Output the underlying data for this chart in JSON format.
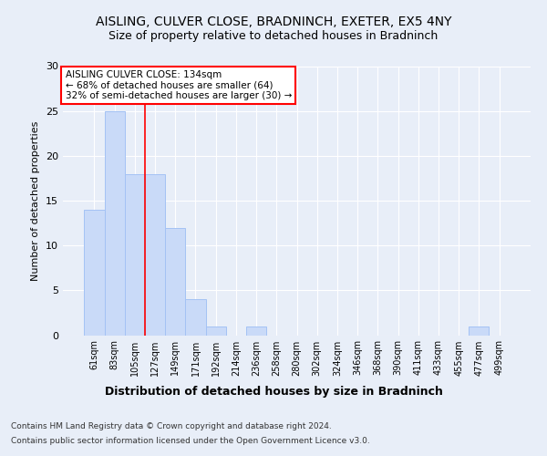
{
  "title": "AISLING, CULVER CLOSE, BRADNINCH, EXETER, EX5 4NY",
  "subtitle": "Size of property relative to detached houses in Bradninch",
  "xlabel_bottom": "Distribution of detached houses by size in Bradninch",
  "ylabel": "Number of detached properties",
  "categories": [
    "61sqm",
    "83sqm",
    "105sqm",
    "127sqm",
    "149sqm",
    "171sqm",
    "192sqm",
    "214sqm",
    "236sqm",
    "258sqm",
    "280sqm",
    "302sqm",
    "324sqm",
    "346sqm",
    "368sqm",
    "390sqm",
    "411sqm",
    "433sqm",
    "455sqm",
    "477sqm",
    "499sqm"
  ],
  "values": [
    14,
    25,
    18,
    18,
    12,
    4,
    1,
    0,
    1,
    0,
    0,
    0,
    0,
    0,
    0,
    0,
    0,
    0,
    0,
    1,
    0
  ],
  "bar_color": "#c9daf8",
  "bar_edge_color": "#a4c2f4",
  "vline_x": 2.5,
  "vline_color": "red",
  "annotation_title": "AISLING CULVER CLOSE: 134sqm",
  "annotation_line2": "← 68% of detached houses are smaller (64)",
  "annotation_line3": "32% of semi-detached houses are larger (30) →",
  "annotation_box_color": "white",
  "annotation_box_edge_color": "red",
  "ylim": [
    0,
    30
  ],
  "yticks": [
    0,
    5,
    10,
    15,
    20,
    25,
    30
  ],
  "footer_line1": "Contains HM Land Registry data © Crown copyright and database right 2024.",
  "footer_line2": "Contains public sector information licensed under the Open Government Licence v3.0.",
  "bg_color": "#e8eef8",
  "grid_color": "white",
  "title_fontsize": 10,
  "subtitle_fontsize": 9,
  "ylabel_fontsize": 8,
  "xtick_fontsize": 7,
  "ytick_fontsize": 8,
  "xlabel_fontsize": 9,
  "footer_fontsize": 6.5
}
